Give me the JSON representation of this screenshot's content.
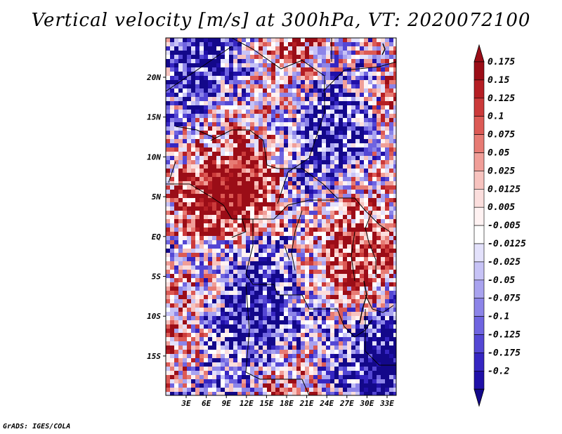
{
  "title": "Vertical velocity [m/s] at 300hPa, VT: 2020072100",
  "credit": "GrADS: IGES/COLA",
  "map": {
    "variable": "vertical velocity",
    "units": "m/s",
    "level": "300hPa",
    "valid_time": "2020072100",
    "lon_labels": [
      "3E",
      "6E",
      "9E",
      "12E",
      "15E",
      "18E",
      "21E",
      "24E",
      "27E",
      "30E",
      "33E"
    ],
    "lat_labels": [
      "20N",
      "15N",
      "10N",
      "5N",
      "EQ",
      "5S",
      "10S",
      "15S"
    ]
  },
  "colorbar": {
    "labels": [
      "0.175",
      "0.15",
      "0.125",
      "0.1",
      "0.075",
      "0.05",
      "0.025",
      "0.0125",
      "0.005",
      "-0.005",
      "-0.0125",
      "-0.025",
      "-0.05",
      "-0.075",
      "-0.1",
      "-0.125",
      "-0.175",
      "-0.2"
    ],
    "colors": [
      "#9b0d17",
      "#b51e24",
      "#cb3a3a",
      "#dc5a55",
      "#e77b74",
      "#f09e98",
      "#f7c3bf",
      "#fbdedd",
      "#fff2f2",
      "#ffffff",
      "#e3e1fb",
      "#c7c3f6",
      "#a9a3ef",
      "#8c84e8",
      "#6f64e0",
      "#5447d4",
      "#3626c2",
      "#2010a8",
      "#13088a"
    ],
    "top_color": "#9b0d17",
    "bottom_color": "#13088a"
  }
}
